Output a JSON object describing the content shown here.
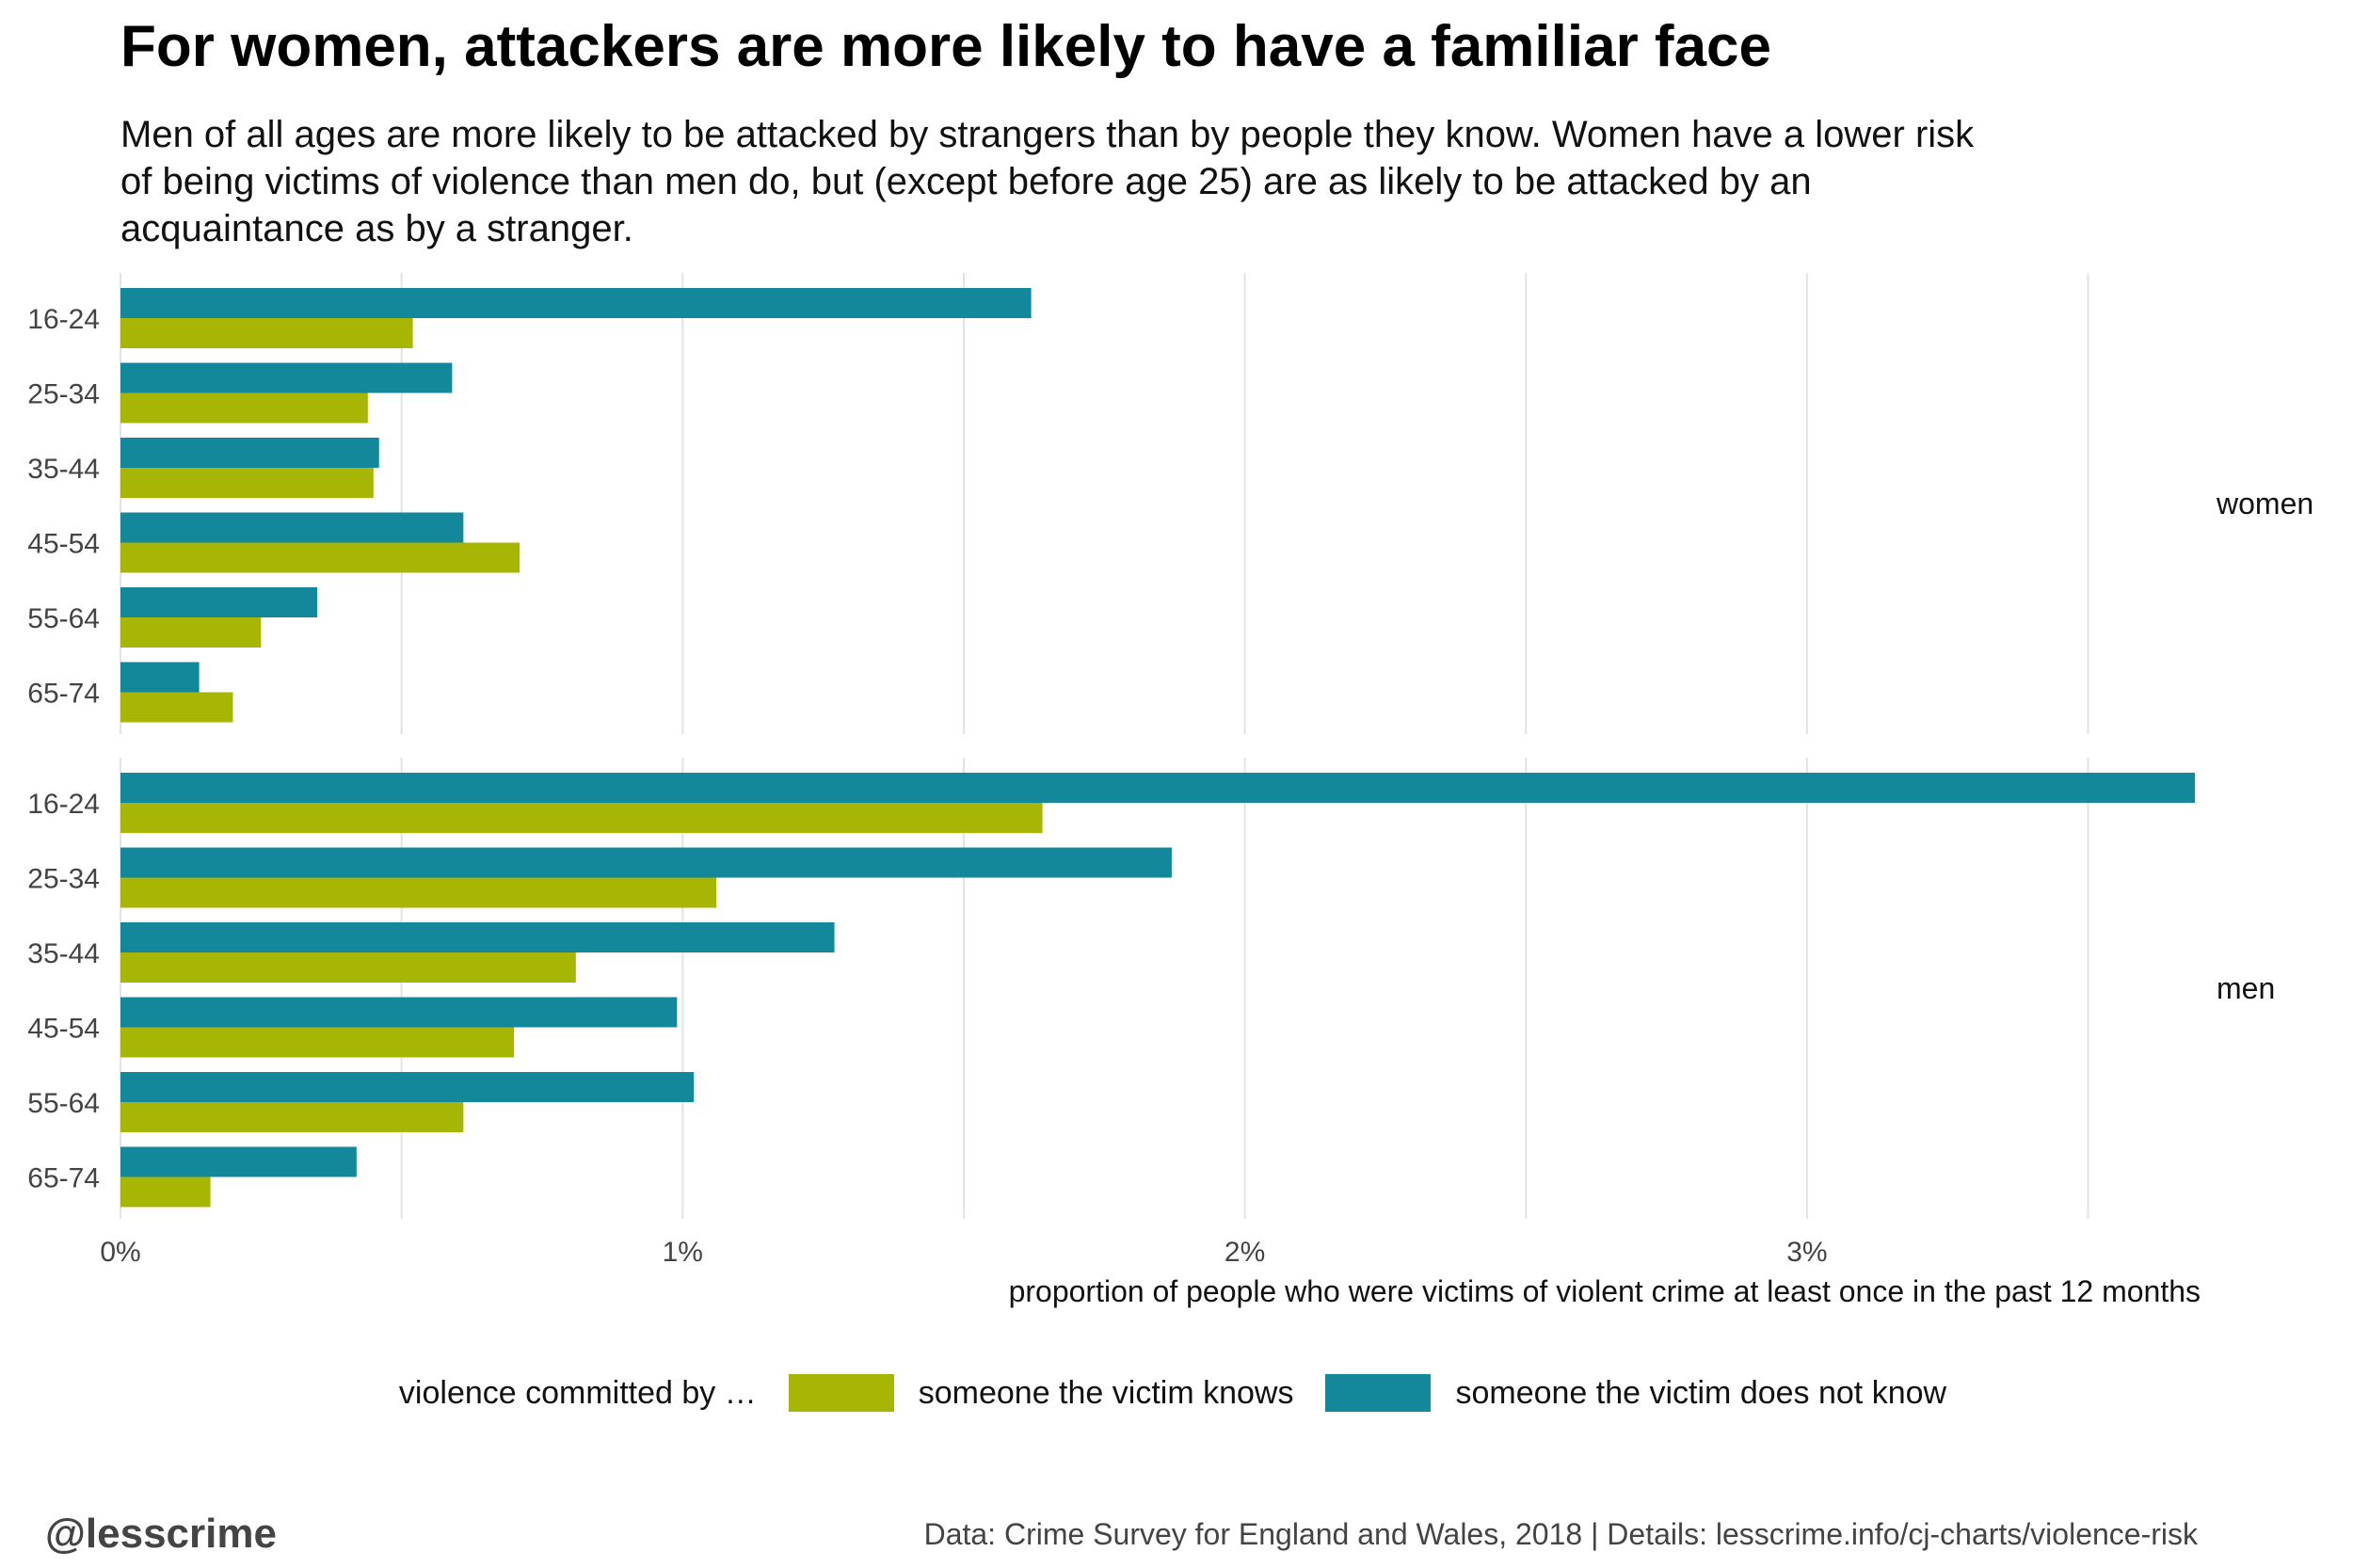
{
  "title": "For women, attackers are more likely to have a familiar face",
  "subtitle": "Men of all ages are more likely to be attacked by strangers than by people they know. Women have a lower risk of being victims of violence than men do, but (except before age 25) are as likely to be attacked by an acquaintance as by a stranger.",
  "legend": {
    "title": "violence committed by …",
    "known_label": "someone the victim knows",
    "unknown_label": "someone the victim does not know"
  },
  "colors": {
    "known": "#a7b504",
    "unknown": "#13889b",
    "grid": "#e3e3e3"
  },
  "handle": "@lesscrime",
  "caption": "Data: Crime Survey for England and Wales, 2018 |  Details: lesscrime.info/cj-charts/violence-risk",
  "chart_data": {
    "type": "bar",
    "orientation": "horizontal",
    "xlabel": "proportion of people who were victims of violent crime at least once in the past 12 months",
    "xlim": [
      0,
      3.7
    ],
    "x_ticks": [
      "0%",
      "1%",
      "2%",
      "3%"
    ],
    "categories": [
      "16-24",
      "25-34",
      "35-44",
      "45-54",
      "55-64",
      "65-74"
    ],
    "facets": [
      {
        "name": "women",
        "series": [
          {
            "name": "someone the victim does not know",
            "values": [
              1.62,
              0.59,
              0.46,
              0.61,
              0.35,
              0.14
            ]
          },
          {
            "name": "someone the victim knows",
            "values": [
              0.52,
              0.44,
              0.45,
              0.71,
              0.25,
              0.2
            ]
          }
        ]
      },
      {
        "name": "men",
        "series": [
          {
            "name": "someone the victim does not know",
            "values": [
              3.69,
              1.87,
              1.27,
              0.99,
              1.02,
              0.42
            ]
          },
          {
            "name": "someone the victim knows",
            "values": [
              1.64,
              1.06,
              0.81,
              0.7,
              0.61,
              0.16
            ]
          }
        ]
      }
    ]
  }
}
